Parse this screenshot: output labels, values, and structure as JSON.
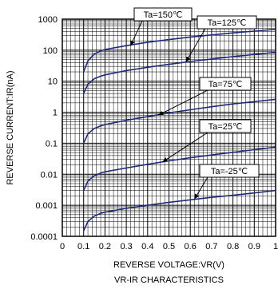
{
  "chart_data": {
    "type": "line",
    "title": "VR-IR CHARACTERISTICS",
    "xlabel": "REVERSE VOLTAGE:VR(V)",
    "ylabel": "REVERSE CURRENT:IR(nA)",
    "xlim": [
      0,
      1
    ],
    "ylim": [
      0.0001,
      1000
    ],
    "yscale": "log",
    "grid": true,
    "x_ticks": [
      "0",
      "0.1",
      "0.2",
      "0.3",
      "0.4",
      "0.5",
      "0.6",
      "0.7",
      "0.8",
      "0.9",
      "1"
    ],
    "y_ticks": [
      "1000",
      "100",
      "10",
      "1",
      "0.1",
      "0.01",
      "0.001",
      "0.0001"
    ],
    "series": [
      {
        "name": "Ta=150℃",
        "x": [
          0.1,
          0.12,
          0.15,
          0.18,
          0.2,
          0.3,
          0.4,
          0.5,
          0.6,
          0.7,
          0.8,
          0.9,
          1.0
        ],
        "y": [
          20,
          45,
          75,
          95,
          105,
          140,
          180,
          220,
          265,
          310,
          360,
          410,
          470
        ]
      },
      {
        "name": "Ta=125℃",
        "x": [
          0.1,
          0.12,
          0.15,
          0.18,
          0.2,
          0.3,
          0.4,
          0.5,
          0.6,
          0.7,
          0.8,
          0.9,
          1.0
        ],
        "y": [
          4,
          8,
          12,
          14.5,
          16,
          22,
          28,
          35,
          43,
          52,
          62,
          73,
          85
        ]
      },
      {
        "name": "Ta=75℃",
        "x": [
          0.1,
          0.12,
          0.15,
          0.18,
          0.2,
          0.3,
          0.4,
          0.5,
          0.6,
          0.7,
          0.8,
          0.9,
          1.0
        ],
        "y": [
          0.1,
          0.2,
          0.3,
          0.36,
          0.4,
          0.55,
          0.72,
          0.95,
          1.2,
          1.5,
          1.85,
          2.2,
          2.6
        ]
      },
      {
        "name": "Ta=25℃",
        "x": [
          0.1,
          0.12,
          0.15,
          0.18,
          0.2,
          0.3,
          0.4,
          0.5,
          0.6,
          0.7,
          0.8,
          0.9,
          1.0
        ],
        "y": [
          0.003,
          0.006,
          0.009,
          0.011,
          0.012,
          0.016,
          0.021,
          0.027,
          0.034,
          0.042,
          0.051,
          0.062,
          0.075
        ]
      },
      {
        "name": "Ta=-25℃",
        "x": [
          0.1,
          0.12,
          0.15,
          0.18,
          0.2,
          0.3,
          0.4,
          0.5,
          0.6,
          0.7,
          0.8,
          0.9,
          1.0
        ],
        "y": [
          0.00015,
          0.0003,
          0.00045,
          0.00055,
          0.0006,
          0.0008,
          0.001,
          0.00125,
          0.0015,
          0.0018,
          0.0021,
          0.0025,
          0.003
        ]
      }
    ],
    "annotations": [
      {
        "text": "Ta=150℃",
        "target_x": 0.32,
        "target_y": 140
      },
      {
        "text": "Ta=125℃",
        "target_x": 0.58,
        "target_y": 42
      },
      {
        "text": "Ta=75℃",
        "target_x": 0.45,
        "target_y": 0.8
      },
      {
        "text": "Ta=25℃",
        "target_x": 0.47,
        "target_y": 0.025
      },
      {
        "text": "Ta=-25℃",
        "target_x": 0.62,
        "target_y": 0.0016
      }
    ]
  },
  "colors": {
    "curve": "#1f2a78",
    "grid": "#000000",
    "axis": "#000000"
  }
}
